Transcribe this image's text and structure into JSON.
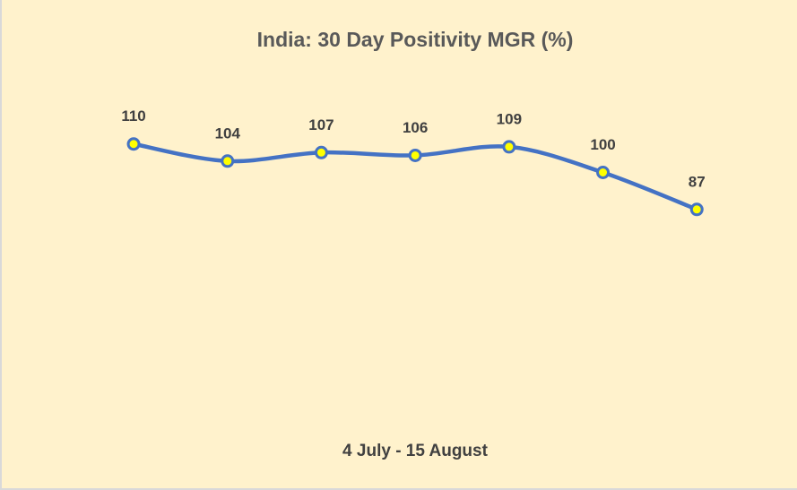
{
  "chart_data": {
    "type": "line",
    "title": "India: 30 Day Positivity MGR (%)",
    "x_label": "4 July - 15 August",
    "categories": [
      null,
      null,
      null,
      null,
      null,
      null,
      null
    ],
    "series": [
      {
        "name": "India",
        "color": "#4472c4",
        "marker_fill": "#ffff00",
        "values": [
          110,
          104,
          107,
          106,
          109,
          100,
          87
        ]
      }
    ],
    "ylim": [
      0,
      120
    ],
    "smooth": true,
    "data_labels": true
  }
}
